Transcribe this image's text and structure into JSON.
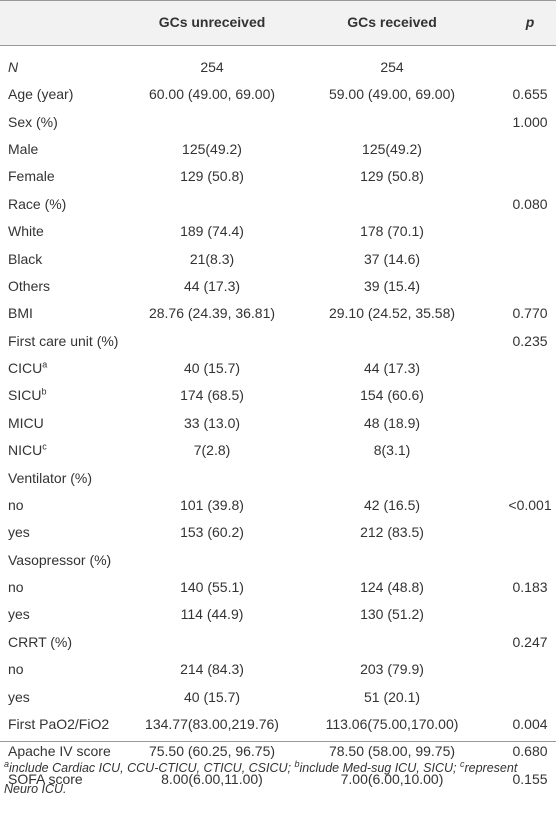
{
  "table": {
    "header": [
      "",
      "GCs unreceived",
      "GCs received",
      "p"
    ],
    "rows": [
      [
        {
          "text": "N",
          "italic": true
        },
        "254",
        "254",
        null
      ],
      [
        {
          "text": "Age (year)"
        },
        "60.00 (49.00, 69.00)",
        "59.00 (49.00, 69.00)",
        "0.655"
      ],
      [
        {
          "text": "Sex (%)"
        },
        null,
        null,
        "1.000"
      ],
      [
        {
          "text": "Male"
        },
        "125(49.2)",
        "125(49.2)",
        null
      ],
      [
        {
          "text": "Female"
        },
        "129 (50.8)",
        "129 (50.8)",
        null
      ],
      [
        {
          "text": "Race (%)"
        },
        null,
        null,
        "0.080"
      ],
      [
        {
          "text": "White"
        },
        "189 (74.4)",
        "178 (70.1)",
        null
      ],
      [
        {
          "text": "Black"
        },
        "21(8.3)",
        "37 (14.6)",
        null
      ],
      [
        {
          "text": "Others"
        },
        "44 (17.3)",
        "39 (15.4)",
        null
      ],
      [
        {
          "text": "BMI"
        },
        "28.76 (24.39, 36.81)",
        "29.10 (24.52, 35.58)",
        "0.770"
      ],
      [
        {
          "text": "First care unit (%)"
        },
        null,
        null,
        "0.235"
      ],
      [
        {
          "text": "CICU",
          "sup": "a"
        },
        "40 (15.7)",
        "44 (17.3)",
        null
      ],
      [
        {
          "text": "SICU",
          "sup": "b"
        },
        "174 (68.5)",
        "154 (60.6)",
        null
      ],
      [
        {
          "text": "MICU"
        },
        "33 (13.0)",
        "48 (18.9)",
        null
      ],
      [
        {
          "text": "NICU",
          "sup": "c"
        },
        "7(2.8)",
        "8(3.1)",
        null
      ],
      [
        {
          "text": "Ventilator (%)"
        },
        null,
        null,
        null
      ],
      [
        {
          "text": "no"
        },
        "101 (39.8)",
        "42 (16.5)",
        "<0.001"
      ],
      [
        {
          "text": "yes"
        },
        "153 (60.2)",
        "212 (83.5)",
        null
      ],
      [
        {
          "text": "Vasopressor (%)"
        },
        null,
        null,
        null
      ],
      [
        {
          "text": "no"
        },
        "140 (55.1)",
        "124 (48.8)",
        "0.183"
      ],
      [
        {
          "text": "yes"
        },
        "114 (44.9)",
        "130 (51.2)",
        null
      ],
      [
        {
          "text": "CRRT (%)"
        },
        null,
        null,
        "0.247"
      ],
      [
        {
          "text": "no"
        },
        "214 (84.3)",
        "203 (79.9)",
        null
      ],
      [
        {
          "text": "yes"
        },
        "40 (15.7)",
        "51 (20.1)",
        null
      ],
      [
        {
          "text": "First PaO2/FiO2"
        },
        "134.77(83.00,219.76)",
        "113.06(75.00,170.00)",
        "0.004"
      ],
      [
        {
          "text": "Apache IV score"
        },
        "75.50 (60.25, 96.75)",
        "78.50 (58.00, 99.75)",
        "0.680"
      ],
      [
        {
          "text": "SOFA score"
        },
        "8.00(6.00,11.00)",
        "7.00(6.00,10.00)",
        "0.155"
      ]
    ],
    "footnote": [
      {
        "sup": "a",
        "text": "include Cardiac ICU, CCU-CTICU, CTICU, CSICU; "
      },
      {
        "sup": "b",
        "text": "include Med-sug ICU, SICU; "
      },
      {
        "sup": "c",
        "text": "represent Neuro ICU."
      }
    ]
  }
}
